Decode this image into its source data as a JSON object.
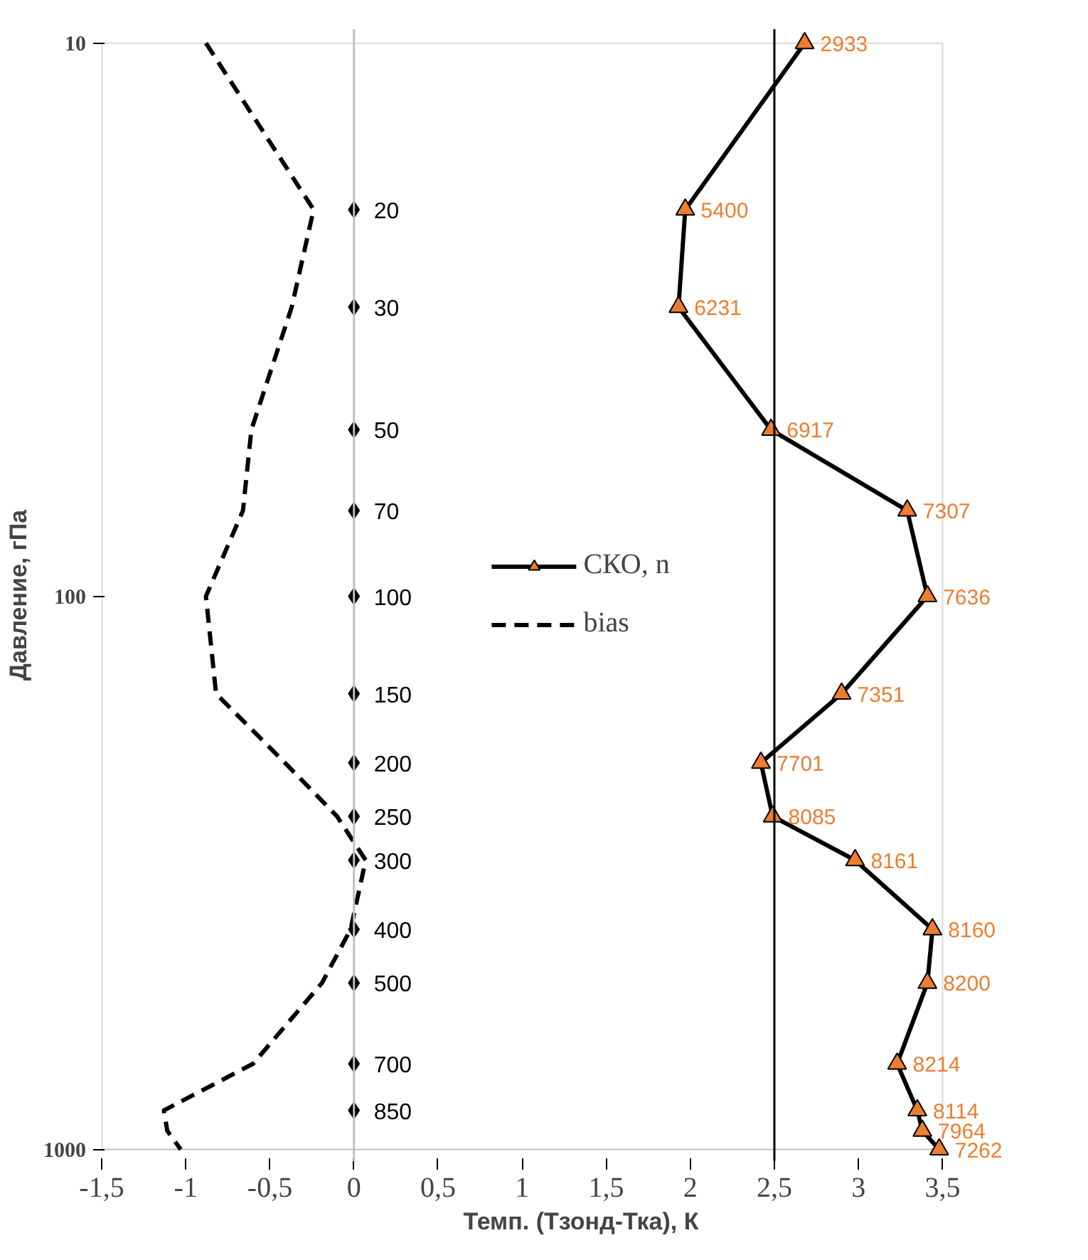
{
  "chart_data": {
    "type": "line",
    "xlabel": "Темп. (Тзонд-Тка), К",
    "ylabel": "Давление, гПа",
    "xlim": [
      -1.5,
      3.5
    ],
    "ylim": [
      1000,
      10
    ],
    "log": "y",
    "xticks": [
      {
        "value": -1.5,
        "label": "-1,5"
      },
      -1,
      {
        "value": -0.5,
        "label": "-0,5"
      },
      0,
      {
        "value": 0.5,
        "label": "0,5"
      },
      1,
      {
        "value": 1.5,
        "label": "1,5"
      },
      2,
      {
        "value": 2.5,
        "label": "2,5"
      },
      3,
      {
        "value": 3.5,
        "label": "3,5"
      }
    ],
    "yticks": [
      10,
      100,
      1000
    ],
    "grid": false,
    "legend": "center",
    "ref_lines": [
      {
        "axis": "x",
        "value": 0,
        "color": "#bfbfbf"
      },
      {
        "axis": "x",
        "value": 2.5,
        "color": "#000000"
      }
    ],
    "annotations": [
      {
        "text": "2933",
        "x": 2.68,
        "y": 10
      },
      {
        "text": "5400",
        "x": 1.97,
        "y": 20
      },
      {
        "text": "6231",
        "x": 1.93,
        "y": 30
      },
      {
        "text": "6917",
        "x": 2.48,
        "y": 50
      },
      {
        "text": "7307",
        "x": 3.29,
        "y": 70
      },
      {
        "text": "7636",
        "x": 3.41,
        "y": 100
      },
      {
        "text": "7351",
        "x": 2.9,
        "y": 150
      },
      {
        "text": "7701",
        "x": 2.42,
        "y": 200
      },
      {
        "text": "8085",
        "x": 2.49,
        "y": 250
      },
      {
        "text": "8161",
        "x": 2.98,
        "y": 300
      },
      {
        "text": "8160",
        "x": 3.44,
        "y": 400
      },
      {
        "text": "8200",
        "x": 3.41,
        "y": 500
      },
      {
        "text": "8214",
        "x": 3.23,
        "y": 700
      },
      {
        "text": "8114",
        "x": 3.35,
        "y": 850
      },
      {
        "text": "7964",
        "x": 3.38,
        "y": 925
      },
      {
        "text": "7262",
        "x": 3.48,
        "y": 1000
      }
    ],
    "series": [
      {
        "name": "СКО, n",
        "color": "#000000",
        "colors": [
          "#ed7d31",
          "#ed7d31",
          "#ed7d31",
          "#ed7d31",
          "#ed7d31",
          "#ed7d31",
          "#ed7d31",
          "#ed7d31",
          "#ed7d31",
          "#ed7d31",
          "#ed7d31",
          "#ed7d31",
          "#ed7d31",
          "#ed7d31",
          "#ed7d31",
          "#ed7d31"
        ],
        "marker": "triangle",
        "line_style": "solid",
        "x": [
          2.68,
          1.97,
          1.93,
          2.48,
          3.29,
          3.41,
          2.9,
          2.42,
          2.49,
          2.98,
          3.44,
          3.41,
          3.23,
          3.35,
          3.38,
          3.48
        ],
        "values": [
          10,
          20,
          30,
          50,
          70,
          100,
          150,
          200,
          250,
          300,
          400,
          500,
          700,
          850,
          925,
          1000
        ]
      },
      {
        "name": "bias",
        "color": "#000000",
        "marker": "none",
        "line_style": "dashed",
        "x": [
          -0.88,
          -0.24,
          -0.37,
          -0.61,
          -0.66,
          -0.88,
          -0.82,
          -0.41,
          -0.1,
          0.07,
          -0.02,
          -0.19,
          -0.6,
          -1.13,
          -1.11,
          -1.03
        ],
        "values": [
          10,
          20,
          30,
          50,
          70,
          100,
          150,
          200,
          250,
          300,
          400,
          500,
          700,
          850,
          925,
          1000
        ]
      },
      {
        "type": "scatter",
        "color": "#000000",
        "marker": "diamond",
        "x": [
          0,
          0,
          0,
          0,
          0,
          0,
          0,
          0,
          0,
          0,
          0,
          0,
          0
        ],
        "values": [
          20,
          30,
          50,
          70,
          100,
          150,
          200,
          250,
          300,
          400,
          500,
          700,
          850
        ],
        "value_labels": [
          "20",
          "30",
          "50",
          "70",
          "100",
          "150",
          "200",
          "250",
          "300",
          "400",
          "500",
          "700",
          "850"
        ]
      }
    ]
  }
}
